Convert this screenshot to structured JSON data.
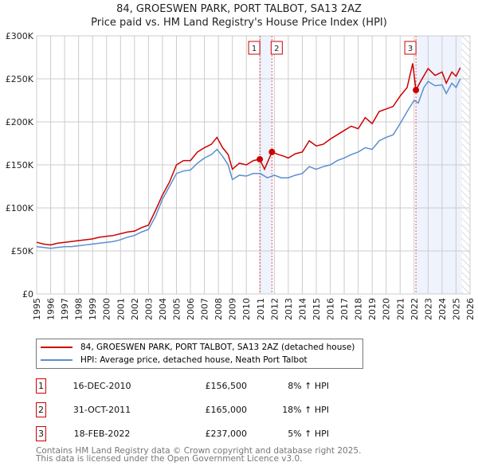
{
  "chart_data": {
    "type": "line",
    "title": "84, GROESWEN PARK, PORT TALBOT, SA13 2AZ",
    "subtitle": "Price paid vs. HM Land Registry's House Price Index (HPI)",
    "xlim": [
      1995,
      2026
    ],
    "ylim": [
      0,
      300000
    ],
    "y_ticks": [
      {
        "v": 0,
        "label": "£0"
      },
      {
        "v": 50000,
        "label": "£50K"
      },
      {
        "v": 100000,
        "label": "£100K"
      },
      {
        "v": 150000,
        "label": "£150K"
      },
      {
        "v": 200000,
        "label": "£200K"
      },
      {
        "v": 250000,
        "label": "£250K"
      },
      {
        "v": 300000,
        "label": "£300K"
      }
    ],
    "x_ticks": [
      "1995",
      "1996",
      "1997",
      "1998",
      "1999",
      "2000",
      "2001",
      "2002",
      "2003",
      "2004",
      "2005",
      "2006",
      "2007",
      "2008",
      "2009",
      "2010",
      "2011",
      "2012",
      "2013",
      "2014",
      "2015",
      "2016",
      "2017",
      "2018",
      "2019",
      "2020",
      "2021",
      "2022",
      "2023",
      "2024",
      "2025",
      "2026"
    ],
    "grid": true,
    "shaded_ranges": [
      [
        2010.96,
        2011.83
      ],
      [
        2022.13,
        2025.4
      ]
    ],
    "forecast_hatch_from": 2025.4,
    "series": [
      {
        "name": "84, GROESWEN PARK, PORT TALBOT, SA13 2AZ (detached house)",
        "color": "#cc0000",
        "points": [
          [
            1995,
            60
          ],
          [
            1995.5,
            58
          ],
          [
            1996,
            57
          ],
          [
            1996.5,
            59
          ],
          [
            1997,
            60
          ],
          [
            1997.5,
            61
          ],
          [
            1998,
            62
          ],
          [
            1998.5,
            63
          ],
          [
            1999,
            64
          ],
          [
            1999.5,
            66
          ],
          [
            2000,
            67
          ],
          [
            2000.5,
            68
          ],
          [
            2001,
            70
          ],
          [
            2001.5,
            72
          ],
          [
            2002,
            73
          ],
          [
            2002.5,
            77
          ],
          [
            2003,
            80
          ],
          [
            2003.5,
            97
          ],
          [
            2004,
            115
          ],
          [
            2004.5,
            130
          ],
          [
            2005,
            150
          ],
          [
            2005.5,
            155
          ],
          [
            2006,
            155
          ],
          [
            2006.5,
            165
          ],
          [
            2007,
            170
          ],
          [
            2007.5,
            174
          ],
          [
            2007.9,
            182
          ],
          [
            2008.3,
            170
          ],
          [
            2008.7,
            162
          ],
          [
            2009,
            145
          ],
          [
            2009.5,
            152
          ],
          [
            2010,
            150
          ],
          [
            2010.5,
            155
          ],
          [
            2010.96,
            156.5
          ],
          [
            2011.3,
            145
          ],
          [
            2011.83,
            165
          ],
          [
            2012.3,
            162
          ],
          [
            2012.7,
            160
          ],
          [
            2013,
            158
          ],
          [
            2013.5,
            163
          ],
          [
            2014,
            165
          ],
          [
            2014.5,
            178
          ],
          [
            2015,
            172
          ],
          [
            2015.5,
            174
          ],
          [
            2016,
            180
          ],
          [
            2016.5,
            185
          ],
          [
            2017,
            190
          ],
          [
            2017.5,
            195
          ],
          [
            2018,
            192
          ],
          [
            2018.5,
            205
          ],
          [
            2019,
            198
          ],
          [
            2019.5,
            212
          ],
          [
            2020,
            215
          ],
          [
            2020.5,
            218
          ],
          [
            2021,
            230
          ],
          [
            2021.5,
            240
          ],
          [
            2021.9,
            268
          ],
          [
            2022.13,
            237
          ],
          [
            2022.5,
            248
          ],
          [
            2023,
            262
          ],
          [
            2023.5,
            254
          ],
          [
            2024,
            258
          ],
          [
            2024.3,
            245
          ],
          [
            2024.7,
            258
          ],
          [
            2025,
            253
          ],
          [
            2025.3,
            263
          ]
        ]
      },
      {
        "name": "HPI: Average price, detached house, Neath Port Talbot",
        "color": "#5b8fd0",
        "points": [
          [
            1995,
            55
          ],
          [
            1995.5,
            54
          ],
          [
            1996,
            53
          ],
          [
            1996.5,
            54
          ],
          [
            1997,
            55
          ],
          [
            1997.5,
            55
          ],
          [
            1998,
            56
          ],
          [
            1998.5,
            57
          ],
          [
            1999,
            58
          ],
          [
            1999.5,
            59
          ],
          [
            2000,
            60
          ],
          [
            2000.5,
            61
          ],
          [
            2001,
            63
          ],
          [
            2001.5,
            66
          ],
          [
            2002,
            68
          ],
          [
            2002.5,
            72
          ],
          [
            2003,
            75
          ],
          [
            2003.5,
            90
          ],
          [
            2004,
            110
          ],
          [
            2004.5,
            125
          ],
          [
            2005,
            140
          ],
          [
            2005.5,
            143
          ],
          [
            2006,
            144
          ],
          [
            2006.5,
            152
          ],
          [
            2007,
            158
          ],
          [
            2007.5,
            162
          ],
          [
            2007.9,
            168
          ],
          [
            2008.3,
            160
          ],
          [
            2008.7,
            150
          ],
          [
            2009,
            133
          ],
          [
            2009.5,
            138
          ],
          [
            2010,
            137
          ],
          [
            2010.5,
            140
          ],
          [
            2011,
            140
          ],
          [
            2011.5,
            135
          ],
          [
            2012,
            138
          ],
          [
            2012.5,
            135
          ],
          [
            2013,
            135
          ],
          [
            2013.5,
            138
          ],
          [
            2014,
            140
          ],
          [
            2014.5,
            148
          ],
          [
            2015,
            145
          ],
          [
            2015.5,
            148
          ],
          [
            2016,
            150
          ],
          [
            2016.5,
            155
          ],
          [
            2017,
            158
          ],
          [
            2017.5,
            162
          ],
          [
            2018,
            165
          ],
          [
            2018.5,
            170
          ],
          [
            2019,
            168
          ],
          [
            2019.5,
            178
          ],
          [
            2020,
            182
          ],
          [
            2020.5,
            185
          ],
          [
            2021,
            198
          ],
          [
            2021.5,
            212
          ],
          [
            2022,
            225
          ],
          [
            2022.3,
            222
          ],
          [
            2022.7,
            240
          ],
          [
            2023,
            247
          ],
          [
            2023.5,
            242
          ],
          [
            2024,
            243
          ],
          [
            2024.3,
            233
          ],
          [
            2024.7,
            245
          ],
          [
            2025,
            240
          ],
          [
            2025.3,
            250
          ]
        ]
      }
    ],
    "sales": [
      {
        "id": "1",
        "x": 2010.96,
        "y": 156500
      },
      {
        "id": "2",
        "x": 2011.83,
        "y": 165000
      },
      {
        "id": "3",
        "x": 2022.13,
        "y": 237000
      }
    ]
  },
  "legend": [
    "84, GROESWEN PARK, PORT TALBOT, SA13 2AZ (detached house)",
    "HPI: Average price, detached house, Neath Port Talbot"
  ],
  "transactions": [
    {
      "id": "1",
      "date": "16-DEC-2010",
      "price": "£156,500",
      "hpi": "8% ↑ HPI"
    },
    {
      "id": "2",
      "date": "31-OCT-2011",
      "price": "£165,000",
      "hpi": "18% ↑ HPI"
    },
    {
      "id": "3",
      "date": "18-FEB-2022",
      "price": "£237,000",
      "hpi": "5% ↑ HPI"
    }
  ],
  "footer": [
    "Contains HM Land Registry data © Crown copyright and database right 2025.",
    "This data is licensed under the Open Government Licence v3.0."
  ]
}
